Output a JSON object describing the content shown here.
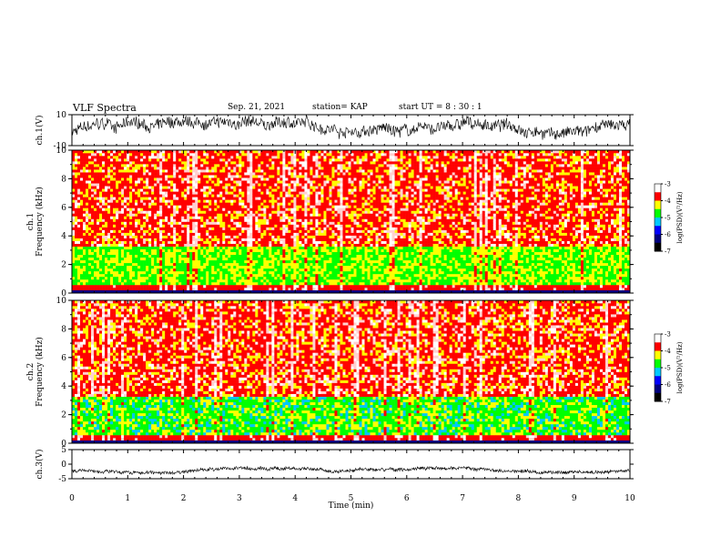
{
  "header": {
    "title": "VLF Spectra",
    "date": "Sep. 21, 2021",
    "station": "station= KAP",
    "start": "start  UT =   8  : 30 : 1"
  },
  "chart_data": [
    {
      "type": "line",
      "ylabel": "ch.1(V)",
      "ylim": [
        -10,
        10
      ],
      "yticks": [
        "10",
        "-10"
      ],
      "xlim": [
        0,
        10
      ]
    },
    {
      "type": "heatmap",
      "ylabel": "Frequency  (kHz)",
      "panel_label": "ch.1",
      "ylim": [
        0,
        10
      ],
      "yticks": [
        "10",
        "8",
        "6",
        "4",
        "2",
        "0"
      ],
      "xlim": [
        0,
        10
      ],
      "colorbar": {
        "label": "log(PSD)(V²/Hz)",
        "ticks": [
          "-3",
          "-4",
          "-5",
          "-6",
          "-7"
        ],
        "range": [
          -7,
          -3
        ]
      }
    },
    {
      "type": "heatmap",
      "ylabel": "Frequency  (kHz)",
      "panel_label": "ch.2",
      "ylim": [
        0,
        10
      ],
      "yticks": [
        "10",
        "8",
        "6",
        "4",
        "2",
        "0"
      ],
      "xlim": [
        0,
        10
      ],
      "colorbar": {
        "label": "log(PSD)(V²/Hz)",
        "ticks": [
          "-3",
          "-4",
          "-5",
          "-6",
          "-7"
        ],
        "range": [
          -7,
          -3
        ]
      }
    },
    {
      "type": "line",
      "ylabel": "ch.3(V)",
      "ylim": [
        -5,
        5
      ],
      "yticks": [
        "5",
        "0",
        "-5"
      ],
      "xlim": [
        0,
        10
      ],
      "xlabel": "Time  (min)",
      "xticks": [
        "0",
        "1",
        "2",
        "3",
        "4",
        "5",
        "6",
        "7",
        "8",
        "9",
        "10"
      ]
    }
  ],
  "colors": {
    "spectrum_high": "#ff0000",
    "spectrum_mid": "#ffff00",
    "spectrum_low": "#00ff00",
    "spectrum_floor": "#000080"
  }
}
